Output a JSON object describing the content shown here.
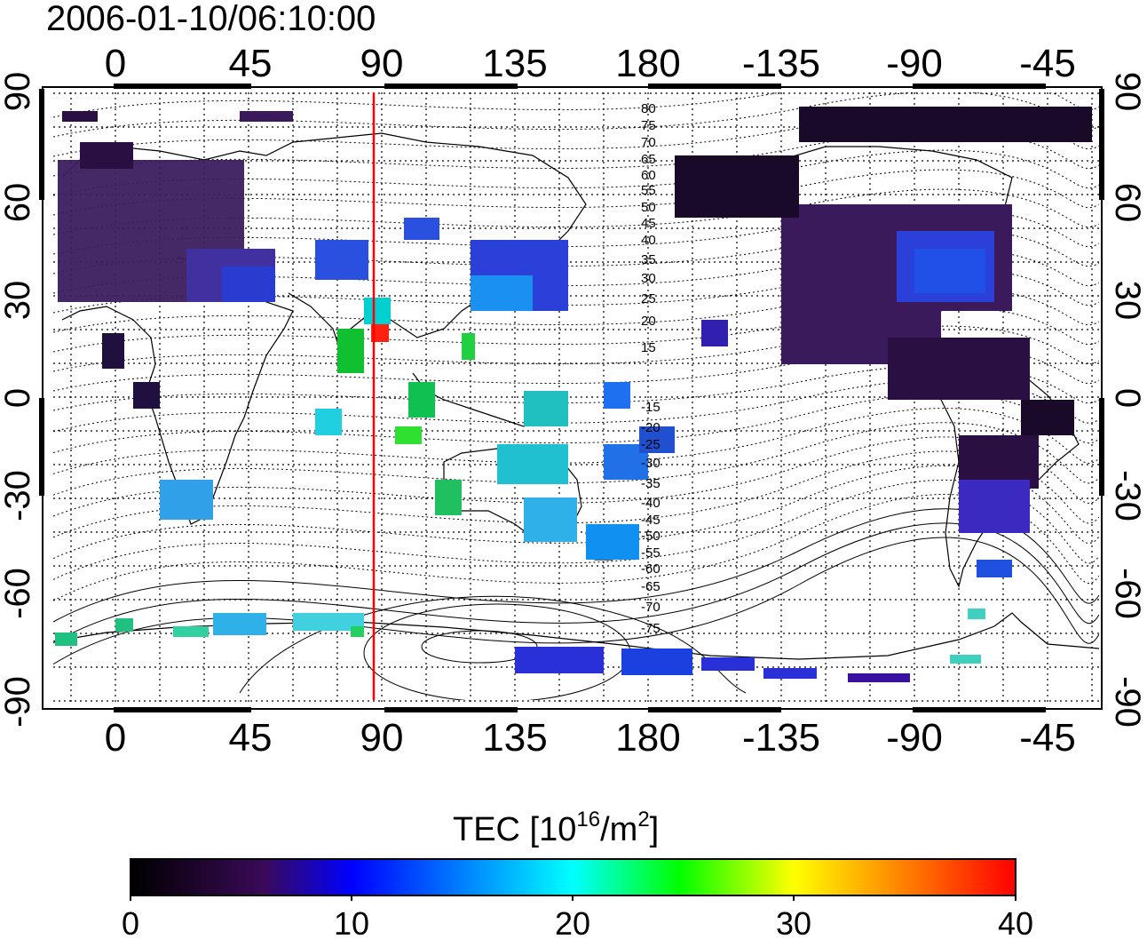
{
  "timestamp": "2006-01-10/06:10:00",
  "x_ticks": [
    "0",
    "45",
    "90",
    "135",
    "180",
    "-135",
    "-90",
    "-45"
  ],
  "y_ticks_left": [
    "90",
    "60",
    "30",
    "0",
    "-30",
    "-60",
    "-90"
  ],
  "y_ticks_right": [
    "90",
    "60",
    "30",
    "0",
    "-30",
    "-60",
    "-90"
  ],
  "contour_labels": [
    "80",
    "75",
    "70",
    "65",
    "60",
    "55",
    "50",
    "45",
    "40",
    "35",
    "30",
    "25",
    "20",
    "15",
    "-15",
    "-20",
    "-25",
    "-30",
    "-35",
    "-40",
    "-45",
    "-50",
    "-55",
    "-60",
    "-65",
    "-70",
    "-75"
  ],
  "colorbar": {
    "title": "TEC  [10",
    "title_sup1": "16",
    "title_mid": "/m",
    "title_sup2": "2",
    "title_end": "]",
    "ticks": [
      "0",
      "10",
      "20",
      "30",
      "40"
    ],
    "stops": [
      "#000000",
      "#3a0a58",
      "#0000ff",
      "#00ffff",
      "#00ff00",
      "#ffff00",
      "#ff0000"
    ]
  },
  "marker_line_longitude": "88",
  "marker_color": "#ff0000"
}
